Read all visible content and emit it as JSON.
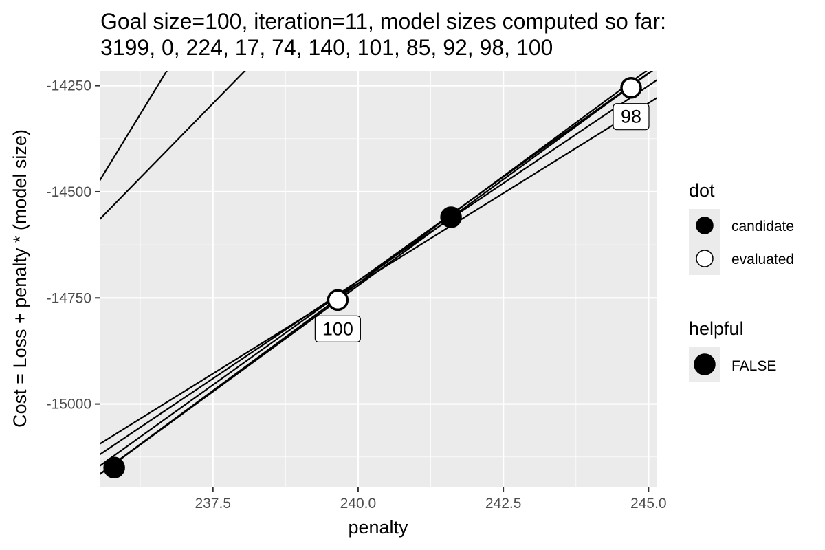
{
  "chart_data": {
    "type": "line",
    "title_line1": "Goal size=100, iteration=11, model sizes computed so far:",
    "title_line2": "3199, 0, 224, 17, 74, 140, 101, 85, 92, 98, 100",
    "xlabel": "penalty",
    "ylabel": "Cost = Loss + penalty * (model size)",
    "xlim": [
      235.55,
      245.15
    ],
    "ylim": [
      -15195,
      -14215
    ],
    "x_ticks": [
      237.5,
      240.0,
      242.5,
      245.0
    ],
    "x_tick_labels": [
      "237.5",
      "240.0",
      "242.5",
      "245.0"
    ],
    "y_ticks": [
      -14250,
      -14500,
      -14750,
      -15000
    ],
    "y_tick_labels": [
      "-14250",
      "-14500",
      "-14750",
      "-15000"
    ],
    "grid": true,
    "panel_background": "#ebebeb",
    "grid_color": "#ffffff",
    "line_color": "#000000",
    "lines": [
      {
        "model_size": 224,
        "loss": -67237
      },
      {
        "model_size": 140,
        "loss": -47542
      },
      {
        "model_size": 101,
        "loss": -38956
      },
      {
        "model_size": 100,
        "loss": -38721
      },
      {
        "model_size": 98,
        "loss": -38230
      },
      {
        "model_size": 92,
        "loss": -36790
      },
      {
        "model_size": 85,
        "loss": -35116
      }
    ],
    "points": [
      {
        "x": 235.8,
        "y": -15150,
        "dot": "candidate",
        "helpful": "FALSE"
      },
      {
        "x": 239.65,
        "y": -14755,
        "dot": "evaluated",
        "helpful": "FALSE",
        "label": "100"
      },
      {
        "x": 241.6,
        "y": -14560,
        "dot": "candidate",
        "helpful": "FALSE"
      },
      {
        "x": 244.7,
        "y": -14255,
        "dot": "evaluated",
        "helpful": "FALSE",
        "label": "98"
      }
    ],
    "legend": {
      "placement": "right",
      "dot_title": "dot",
      "dot_entries": [
        {
          "label": "candidate",
          "fill": "#000000"
        },
        {
          "label": "evaluated",
          "fill": "#ffffff"
        }
      ],
      "helpful_title": "helpful",
      "helpful_entries": [
        {
          "label": "FALSE",
          "fill": "#000000"
        }
      ]
    }
  }
}
